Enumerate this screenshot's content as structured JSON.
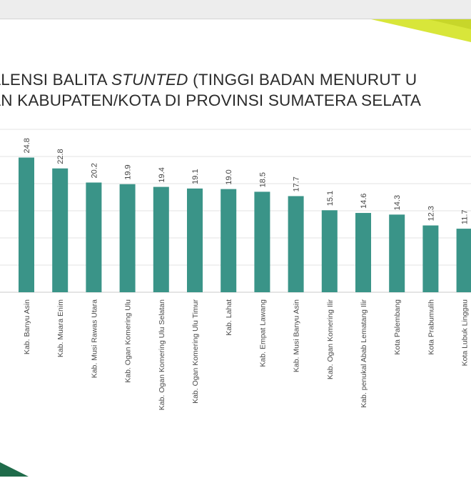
{
  "slide": {
    "title_line1_prefix": "ALENSI BALITA ",
    "title_line1_italic": "STUNTED",
    "title_line1_suffix": " (TINGGI BADAN MENURUT U",
    "title_line2": "AN KABUPATEN/KOTA DI PROVINSI SUMATERA SELATA"
  },
  "colors": {
    "bar": "#3a9488",
    "accent_yellow": "#d8e63a",
    "accent_green": "#1f6b4a",
    "footer_dark": "#1c1c1c"
  },
  "chart_data": {
    "type": "bar",
    "categories": [
      "Kab. Banyu Asin",
      "Kab. Muara Enim",
      "Kab. Musi Rawas Utara",
      "Kab. Ogan Komering Ulu",
      "Kab. Ogan Komering Ulu Selatan",
      "Kab. Ogan Komering Ulu Timur",
      "Kab. Lahat",
      "Kab. Empat Lawang",
      "Kab. Musi Banyu Asin",
      "Kab. Ogan Komering Ilir",
      "Kab. penukal Abab Lematang Ilir",
      "Kota Palembang",
      "Kota Prabumulih",
      "Kota Lubuk Linggau"
    ],
    "values": [
      24.8,
      22.8,
      20.2,
      19.9,
      19.4,
      19.1,
      19.0,
      18.5,
      17.7,
      15.1,
      14.6,
      14.3,
      12.3,
      11.7
    ],
    "value_labels": [
      "24.8",
      "22.8",
      "20.2",
      "19.9",
      "19.4",
      "19.1",
      "19.0",
      "18.5",
      "17.7",
      "15.1",
      "14.6",
      "14.3",
      "12.3",
      "11.7"
    ],
    "ylim": [
      0,
      30
    ],
    "grid": true,
    "title": "",
    "xlabel": "",
    "ylabel": ""
  }
}
